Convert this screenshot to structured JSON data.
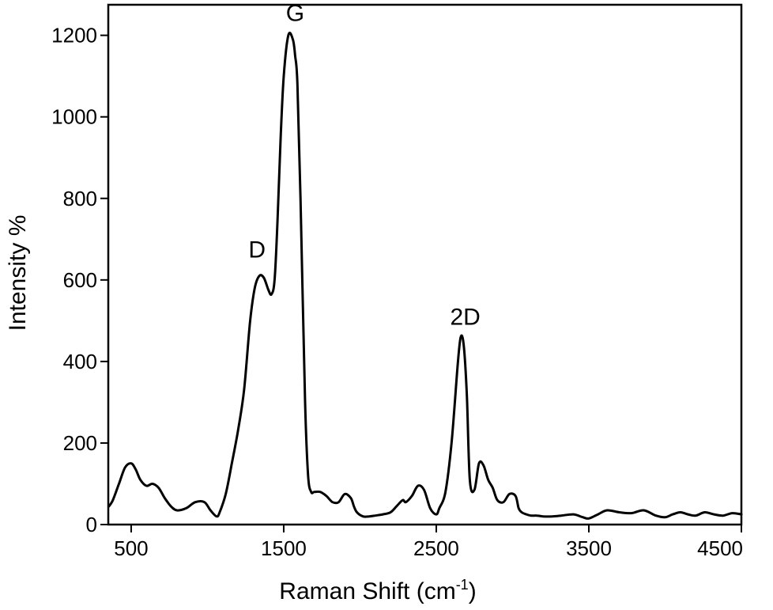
{
  "chart_data": {
    "type": "line",
    "xlabel": "Raman Shift (cm",
    "xlabel_sup": "-1",
    "xlabel_end": ")",
    "ylabel": "Intensity %",
    "xlim": [
      350,
      4500
    ],
    "ylim": [
      0,
      1275
    ],
    "xticks": [
      500,
      1500,
      2500,
      3500,
      4500
    ],
    "yticks": [
      0,
      200,
      400,
      600,
      800,
      1000,
      1200
    ],
    "grid": false,
    "legend": "none",
    "line_color": "#000000",
    "series": [
      {
        "x": [
          355,
          380,
          420,
          460,
          500,
          530,
          560,
          600,
          640,
          680,
          720,
          760,
          800,
          860,
          920,
          980,
          1020,
          1060,
          1080,
          1120,
          1160,
          1200,
          1240,
          1280,
          1310,
          1340,
          1370,
          1400,
          1420,
          1440,
          1460,
          1480,
          1500,
          1530,
          1560,
          1575,
          1590,
          1610,
          1640,
          1660,
          1680,
          1700,
          1740,
          1780,
          1820,
          1860,
          1900,
          1940,
          1960,
          1980,
          2020,
          2060,
          2100,
          2150,
          2200,
          2240,
          2280,
          2300,
          2340,
          2380,
          2420,
          2460,
          2500,
          2520,
          2560,
          2600,
          2640,
          2660,
          2680,
          2700,
          2720,
          2750,
          2780,
          2810,
          2840,
          2870,
          2900,
          2940,
          2980,
          3020,
          3040,
          3060,
          3090,
          3120,
          3160,
          3200,
          3260,
          3320,
          3400,
          3460,
          3500,
          3560,
          3620,
          3700,
          3780,
          3860,
          3940,
          4000,
          4050,
          4100,
          4150,
          4200,
          4260,
          4320,
          4380,
          4440,
          4500
        ],
        "y": [
          45,
          60,
          100,
          140,
          150,
          135,
          110,
          95,
          100,
          90,
          65,
          45,
          35,
          40,
          55,
          55,
          35,
          20,
          30,
          75,
          150,
          230,
          330,
          500,
          580,
          610,
          605,
          575,
          565,
          600,
          750,
          950,
          1100,
          1200,
          1190,
          1150,
          1080,
          800,
          300,
          120,
          80,
          80,
          80,
          70,
          55,
          55,
          75,
          65,
          45,
          30,
          20,
          20,
          22,
          25,
          30,
          45,
          60,
          55,
          70,
          95,
          85,
          40,
          25,
          40,
          80,
          200,
          390,
          460,
          440,
          320,
          110,
          85,
          150,
          145,
          110,
          90,
          60,
          55,
          75,
          70,
          40,
          30,
          25,
          22,
          22,
          20,
          20,
          22,
          25,
          18,
          15,
          25,
          35,
          30,
          28,
          35,
          22,
          18,
          25,
          30,
          25,
          22,
          30,
          25,
          22,
          28,
          25
        ]
      }
    ],
    "annotations": [
      {
        "text": "D",
        "x": 1325,
        "y": 655
      },
      {
        "text": "G",
        "x": 1575,
        "y": 1235
      },
      {
        "text": "2D",
        "x": 2690,
        "y": 490
      }
    ]
  }
}
